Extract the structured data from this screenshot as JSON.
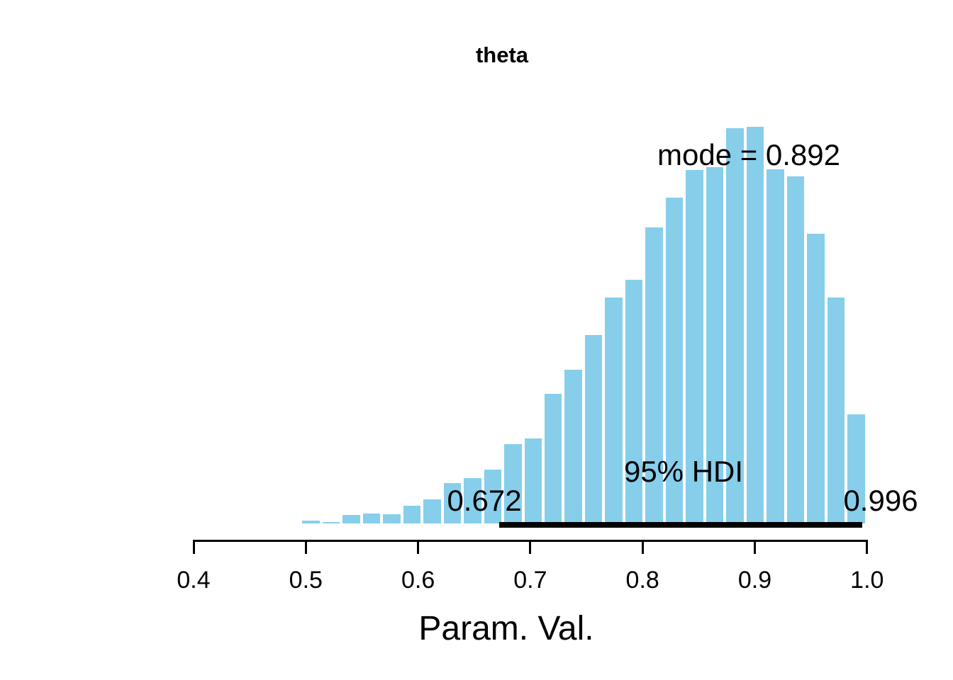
{
  "title": "theta",
  "annotations": {
    "mode_label": "mode = 0.892",
    "hdi_label": "95% HDI",
    "hdi_low_label": "0.672",
    "hdi_high_label": "0.996"
  },
  "x_axis": {
    "label": "Param. Val.",
    "tick_labels": [
      "0.4",
      "0.5",
      "0.6",
      "0.7",
      "0.8",
      "0.9",
      "1.0"
    ],
    "tick_values": [
      0.4,
      0.5,
      0.6,
      0.7,
      0.8,
      0.9,
      1.0
    ]
  },
  "colors": {
    "bar_fill": "#87CEEB",
    "bar_border": "#FFFFFF",
    "hdi_line": "#000000",
    "text": "#000000",
    "axis": "#000000",
    "background": "#FFFFFF"
  },
  "chart_data": {
    "type": "bar",
    "subtype": "histogram",
    "title": "theta",
    "xlabel": "Param. Val.",
    "ylabel": "",
    "xlim": [
      0.4,
      1.0
    ],
    "grid": false,
    "legend": false,
    "parameter": "theta",
    "mode": 0.892,
    "hdi_mass": 0.95,
    "hdi_lower": 0.672,
    "hdi_upper": 0.996,
    "bin_start": 0.4954,
    "bin_width": 0.018,
    "n_bins": 28,
    "heights_relative": [
      0.011,
      0.004,
      0.025,
      0.028,
      0.027,
      0.048,
      0.064,
      0.105,
      0.117,
      0.139,
      0.203,
      0.217,
      0.329,
      0.39,
      0.477,
      0.571,
      0.616,
      0.747,
      0.822,
      0.891,
      0.898,
      0.996,
      1.0,
      0.893,
      0.875,
      0.731,
      0.571,
      0.278
    ]
  }
}
